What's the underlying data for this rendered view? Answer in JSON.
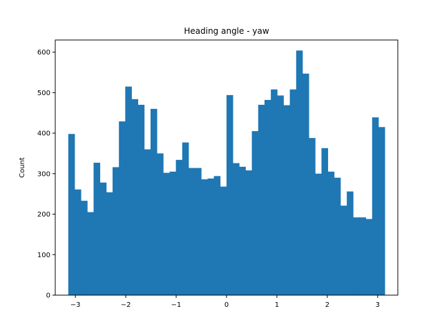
{
  "chart_data": {
    "type": "bar",
    "title": "Heading angle - yaw",
    "xlabel": "",
    "ylabel": "Count",
    "xlim": [
      -3.4,
      3.4
    ],
    "ylim": [
      0,
      630
    ],
    "x_ticks": [
      -3,
      -2,
      -1,
      0,
      1,
      2,
      3
    ],
    "x_tick_labels": [
      "−3",
      "−2",
      "−1",
      "0",
      "1",
      "2",
      "3"
    ],
    "y_ticks": [
      0,
      100,
      200,
      300,
      400,
      500,
      600
    ],
    "y_tick_labels": [
      "0",
      "100",
      "200",
      "300",
      "400",
      "500",
      "600"
    ],
    "bins": {
      "start": -3.1416,
      "end": 3.1416,
      "count": 50
    },
    "values": [
      398,
      261,
      233,
      205,
      327,
      278,
      254,
      316,
      429,
      515,
      484,
      470,
      360,
      460,
      350,
      302,
      305,
      334,
      377,
      314,
      314,
      286,
      288,
      294,
      268,
      494,
      326,
      317,
      308,
      405,
      470,
      482,
      508,
      493,
      469,
      508,
      604,
      547,
      388,
      300,
      363,
      305,
      290,
      221,
      256,
      192,
      192,
      188,
      439,
      415
    ],
    "bar_color": "#1f77b4",
    "grid": false,
    "legend": "none"
  }
}
